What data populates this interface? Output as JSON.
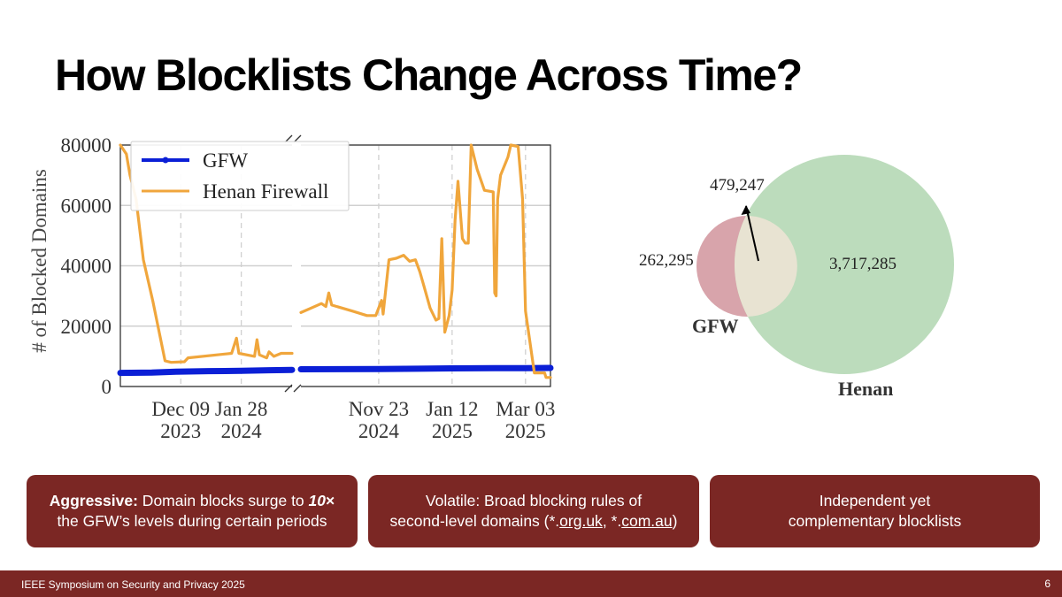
{
  "title": "How Blocklists Change Across Time?",
  "chart_data": [
    {
      "type": "line",
      "ylabel": "# of Blocked Domains",
      "ylim": [
        0,
        80000
      ],
      "yticks": [
        "0",
        "20000",
        "40000",
        "60000",
        "80000"
      ],
      "broken_x_axis": true,
      "xtick_labels": [
        {
          "line1": "Dec 09",
          "line2": "2023"
        },
        {
          "line1": "Jan 28",
          "line2": "2024"
        },
        {
          "line1": "Nov 23",
          "line2": "2024"
        },
        {
          "line1": "Jan 12",
          "line2": "2025"
        },
        {
          "line1": "Mar 03",
          "line2": "2025"
        }
      ],
      "legend_position": "top-left",
      "grid": true,
      "series": [
        {
          "name": "GFW",
          "color": "#0b1fd6",
          "segments": [
            [
              [
                "2023-10-20",
                4500
              ],
              [
                "2023-11-15",
                4600
              ],
              [
                "2023-12-05",
                4900
              ],
              [
                "2024-01-01",
                5100
              ],
              [
                "2024-01-28",
                5200
              ],
              [
                "2024-02-20",
                5400
              ],
              [
                "2024-03-10",
                5500
              ]
            ],
            [
              [
                "2024-10-01",
                5700
              ],
              [
                "2024-11-23",
                5800
              ],
              [
                "2024-12-20",
                5900
              ],
              [
                "2025-01-12",
                6000
              ],
              [
                "2025-02-10",
                6100
              ],
              [
                "2025-03-03",
                6100
              ],
              [
                "2025-03-20",
                6150
              ]
            ]
          ]
        },
        {
          "name": "Henan Firewall",
          "color": "#f0a63c",
          "segments": [
            [
              [
                "2023-10-20",
                80000
              ],
              [
                "2023-10-25",
                77000
              ],
              [
                "2023-10-28",
                70000
              ],
              [
                "2023-11-02",
                62000
              ],
              [
                "2023-11-08",
                42000
              ],
              [
                "2023-11-16",
                28000
              ],
              [
                "2023-11-26",
                8500
              ],
              [
                "2023-12-01",
                8000
              ],
              [
                "2023-12-12",
                8200
              ],
              [
                "2023-12-15",
                9500
              ],
              [
                "2024-01-20",
                11000
              ],
              [
                "2024-01-24",
                16000
              ],
              [
                "2024-01-26",
                11000
              ],
              [
                "2024-02-08",
                10000
              ],
              [
                "2024-02-10",
                15500
              ],
              [
                "2024-02-12",
                10500
              ],
              [
                "2024-02-18",
                9500
              ],
              [
                "2024-02-20",
                11500
              ],
              [
                "2024-02-24",
                10000
              ],
              [
                "2024-03-01",
                11000
              ],
              [
                "2024-03-10",
                11000
              ]
            ],
            [
              [
                "2024-10-01",
                24500
              ],
              [
                "2024-10-08",
                26000
              ],
              [
                "2024-10-15",
                27500
              ],
              [
                "2024-10-18",
                26500
              ],
              [
                "2024-10-20",
                31000
              ],
              [
                "2024-10-22",
                27000
              ],
              [
                "2024-11-05",
                25000
              ],
              [
                "2024-11-15",
                23500
              ],
              [
                "2024-11-21",
                23500
              ],
              [
                "2024-11-25",
                28500
              ],
              [
                "2024-11-26",
                24000
              ],
              [
                "2024-11-30",
                42000
              ],
              [
                "2024-12-05",
                42500
              ],
              [
                "2024-12-10",
                43500
              ],
              [
                "2024-12-14",
                41500
              ],
              [
                "2024-12-18",
                42000
              ],
              [
                "2024-12-21",
                38000
              ],
              [
                "2024-12-24",
                33000
              ],
              [
                "2024-12-28",
                26000
              ],
              [
                "2025-01-01",
                22000
              ],
              [
                "2025-01-03",
                22500
              ],
              [
                "2025-01-05",
                49000
              ],
              [
                "2025-01-07",
                18000
              ],
              [
                "2025-01-10",
                23500
              ],
              [
                "2025-01-12",
                32000
              ],
              [
                "2025-01-14",
                55000
              ],
              [
                "2025-01-16",
                68000
              ],
              [
                "2025-01-19",
                49000
              ],
              [
                "2025-01-21",
                47500
              ],
              [
                "2025-01-23",
                47500
              ],
              [
                "2025-01-25",
                80000
              ],
              [
                "2025-01-29",
                72000
              ],
              [
                "2025-02-03",
                65000
              ],
              [
                "2025-02-09",
                64500
              ],
              [
                "2025-02-10",
                31000
              ],
              [
                "2025-02-11",
                30000
              ],
              [
                "2025-02-12",
                62000
              ],
              [
                "2025-02-14",
                70000
              ],
              [
                "2025-02-19",
                76000
              ],
              [
                "2025-02-21",
                80000
              ],
              [
                "2025-02-26",
                79500
              ],
              [
                "2025-03-01",
                62000
              ],
              [
                "2025-03-03",
                25000
              ],
              [
                "2025-03-09",
                4500
              ],
              [
                "2025-03-13",
                4500
              ],
              [
                "2025-03-16",
                4500
              ],
              [
                "2025-03-17",
                3000
              ],
              [
                "2025-03-20",
                3000
              ]
            ]
          ]
        }
      ]
    },
    {
      "type": "venn",
      "sets": [
        {
          "label": "GFW",
          "only": "262,295",
          "color": "#d8a4ab"
        },
        {
          "label": "Henan",
          "only": "3,717,285",
          "color": "#bcdcbc"
        }
      ],
      "intersection": "479,247",
      "intersection_color": "#e8e3d2"
    }
  ],
  "cards": [
    {
      "strong": "Aggressive:",
      "line1_rest": " Domain blocks surge to ",
      "emph": "10",
      "times": "×",
      "line2": "the GFW’s levels during certain periods"
    },
    {
      "line1": "Volatile: Broad blocking rules of",
      "line2_a": "second-level domains (*.",
      "link1": "org.uk",
      "line2_b": ", *.",
      "link2": "com.au",
      "line2_c": ")"
    },
    {
      "line1": "Independent yet",
      "line2": "complementary blocklists"
    }
  ],
  "footer": {
    "conference": "IEEE Symposium on Security and Privacy 2025",
    "page": "6"
  }
}
